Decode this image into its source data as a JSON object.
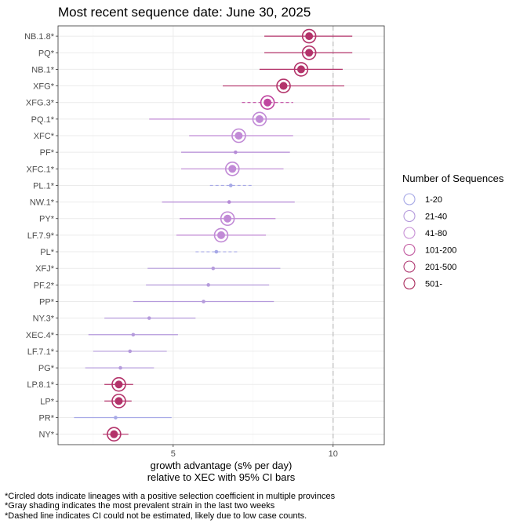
{
  "chart_data": {
    "type": "scatter",
    "title": "Most recent sequence date: June 30, 2025",
    "xlabel_line1": "growth advantage (s% per day)",
    "xlabel_line2": "relative to  XEC  with 95% CI bars",
    "xlim": [
      1.4,
      11.6
    ],
    "xticks": [
      5,
      10
    ],
    "xtick_labels": [
      "5",
      "10"
    ],
    "reference_line_x": 10,
    "grid": true,
    "legend_position": "right",
    "legend": {
      "title": "Number of Sequences",
      "entries": [
        {
          "label": "1-20",
          "color": "#a6a8e6"
        },
        {
          "label": "21-40",
          "color": "#b59bdc"
        },
        {
          "label": "41-80",
          "color": "#c890d6"
        },
        {
          "label": "101-200",
          "color": "#c25aa0"
        },
        {
          "label": "201-500",
          "color": "#b03a72"
        },
        {
          "label": "501-",
          "color": "#a8285a"
        }
      ]
    },
    "series": [
      {
        "lineage": "NB.1.8*",
        "value": 9.25,
        "lower": 7.85,
        "upper": 10.6,
        "circled": true,
        "dashed": false,
        "color": "#b3336a"
      },
      {
        "lineage": "PQ*",
        "value": 9.25,
        "lower": 7.85,
        "upper": 10.6,
        "circled": true,
        "dashed": false,
        "color": "#b3336a"
      },
      {
        "lineage": "NB.1*",
        "value": 9.0,
        "lower": 7.7,
        "upper": 10.3,
        "circled": true,
        "dashed": false,
        "color": "#b3336a"
      },
      {
        "lineage": "XFG*",
        "value": 8.45,
        "lower": 6.55,
        "upper": 10.35,
        "circled": true,
        "dashed": false,
        "color": "#b3336a"
      },
      {
        "lineage": "XFG.3*",
        "value": 7.95,
        "lower": 7.15,
        "upper": 8.75,
        "circled": true,
        "dashed": true,
        "color": "#c046a0"
      },
      {
        "lineage": "PQ.1*",
        "value": 7.7,
        "lower": 4.25,
        "upper": 11.15,
        "circled": true,
        "dashed": false,
        "color": "#c18ad6"
      },
      {
        "lineage": "XFC*",
        "value": 7.05,
        "lower": 5.5,
        "upper": 8.75,
        "circled": true,
        "dashed": false,
        "color": "#c18ad6"
      },
      {
        "lineage": "PF*",
        "value": 6.95,
        "lower": 5.25,
        "upper": 8.65,
        "circled": false,
        "dashed": false,
        "color": "#b58ad6"
      },
      {
        "lineage": "XFC.1*",
        "value": 6.85,
        "lower": 5.25,
        "upper": 8.45,
        "circled": true,
        "dashed": false,
        "color": "#c18ad6"
      },
      {
        "lineage": "PL.1*",
        "value": 6.8,
        "lower": 6.15,
        "upper": 7.45,
        "circled": false,
        "dashed": true,
        "color": "#a6a8e6"
      },
      {
        "lineage": "NW.1*",
        "value": 6.75,
        "lower": 4.65,
        "upper": 8.8,
        "circled": false,
        "dashed": false,
        "color": "#b58ad6"
      },
      {
        "lineage": "PY*",
        "value": 6.7,
        "lower": 5.2,
        "upper": 8.2,
        "circled": true,
        "dashed": false,
        "color": "#c18ad6"
      },
      {
        "lineage": "LF.7.9*",
        "value": 6.5,
        "lower": 5.1,
        "upper": 7.9,
        "circled": true,
        "dashed": false,
        "color": "#c18ad6"
      },
      {
        "lineage": "PL*",
        "value": 6.35,
        "lower": 5.7,
        "upper": 7.0,
        "circled": false,
        "dashed": true,
        "color": "#a6a8e6"
      },
      {
        "lineage": "XFJ*",
        "value": 6.25,
        "lower": 4.2,
        "upper": 8.35,
        "circled": false,
        "dashed": false,
        "color": "#b59bdc"
      },
      {
        "lineage": "PF.2*",
        "value": 6.1,
        "lower": 4.15,
        "upper": 8.0,
        "circled": false,
        "dashed": false,
        "color": "#b59bdc"
      },
      {
        "lineage": "PP*",
        "value": 5.95,
        "lower": 3.75,
        "upper": 8.15,
        "circled": false,
        "dashed": false,
        "color": "#b59bdc"
      },
      {
        "lineage": "NY.3*",
        "value": 4.25,
        "lower": 2.85,
        "upper": 5.7,
        "circled": false,
        "dashed": false,
        "color": "#b59bdc"
      },
      {
        "lineage": "XEC.4*",
        "value": 3.75,
        "lower": 2.35,
        "upper": 5.15,
        "circled": false,
        "dashed": false,
        "color": "#b59bdc"
      },
      {
        "lineage": "LF.7.1*",
        "value": 3.65,
        "lower": 2.5,
        "upper": 4.8,
        "circled": false,
        "dashed": false,
        "color": "#b59bdc"
      },
      {
        "lineage": "PG*",
        "value": 3.35,
        "lower": 2.25,
        "upper": 4.4,
        "circled": false,
        "dashed": false,
        "color": "#b59bdc"
      },
      {
        "lineage": "LP.8.1*",
        "value": 3.3,
        "lower": 2.85,
        "upper": 3.75,
        "circled": true,
        "dashed": false,
        "color": "#b3336a"
      },
      {
        "lineage": "LP*",
        "value": 3.3,
        "lower": 2.85,
        "upper": 3.7,
        "circled": true,
        "dashed": false,
        "color": "#b3336a"
      },
      {
        "lineage": "PR*",
        "value": 3.2,
        "lower": 1.9,
        "upper": 4.95,
        "circled": false,
        "dashed": false,
        "color": "#a6a8e6"
      },
      {
        "lineage": "NY*",
        "value": 3.15,
        "lower": 2.8,
        "upper": 3.6,
        "circled": true,
        "dashed": false,
        "color": "#b3336a"
      }
    ]
  },
  "footnotes": [
    "*Circled dots indicate lineages with a positive selection coefficient in multiple provinces",
    "*Gray shading indicates the most prevalent strain in the last two weeks",
    "*Dashed line indicates CI could not be estimated, likely due to low case counts."
  ],
  "colors": {
    "panel_border": "#333333",
    "grid_major": "#ebebeb",
    "grid_minor": "#f5f5f5",
    "reference_line": "#bdbdbd"
  }
}
